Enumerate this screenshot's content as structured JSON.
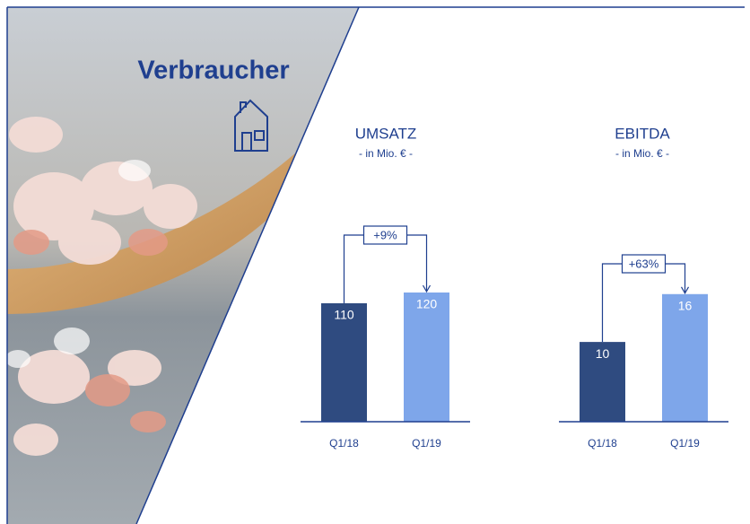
{
  "title": "Verbraucher",
  "chart_data": [
    {
      "type": "bar",
      "title": "UMSATZ",
      "subtitle": "- in Mio. € -",
      "categories": [
        "Q1/18",
        "Q1/19"
      ],
      "values": [
        110,
        120
      ],
      "colors": [
        "#2f4b80",
        "#7ea6ea"
      ],
      "annotation": "+9%",
      "ylim": [
        0,
        200
      ]
    },
    {
      "type": "bar",
      "title": "EBITDA",
      "subtitle": "- in Mio. € -",
      "categories": [
        "Q1/18",
        "Q1/19"
      ],
      "values": [
        10,
        16
      ],
      "colors": [
        "#2f4b80",
        "#7ea6ea"
      ],
      "annotation": "+63%",
      "ylim": [
        0,
        27
      ]
    }
  ]
}
